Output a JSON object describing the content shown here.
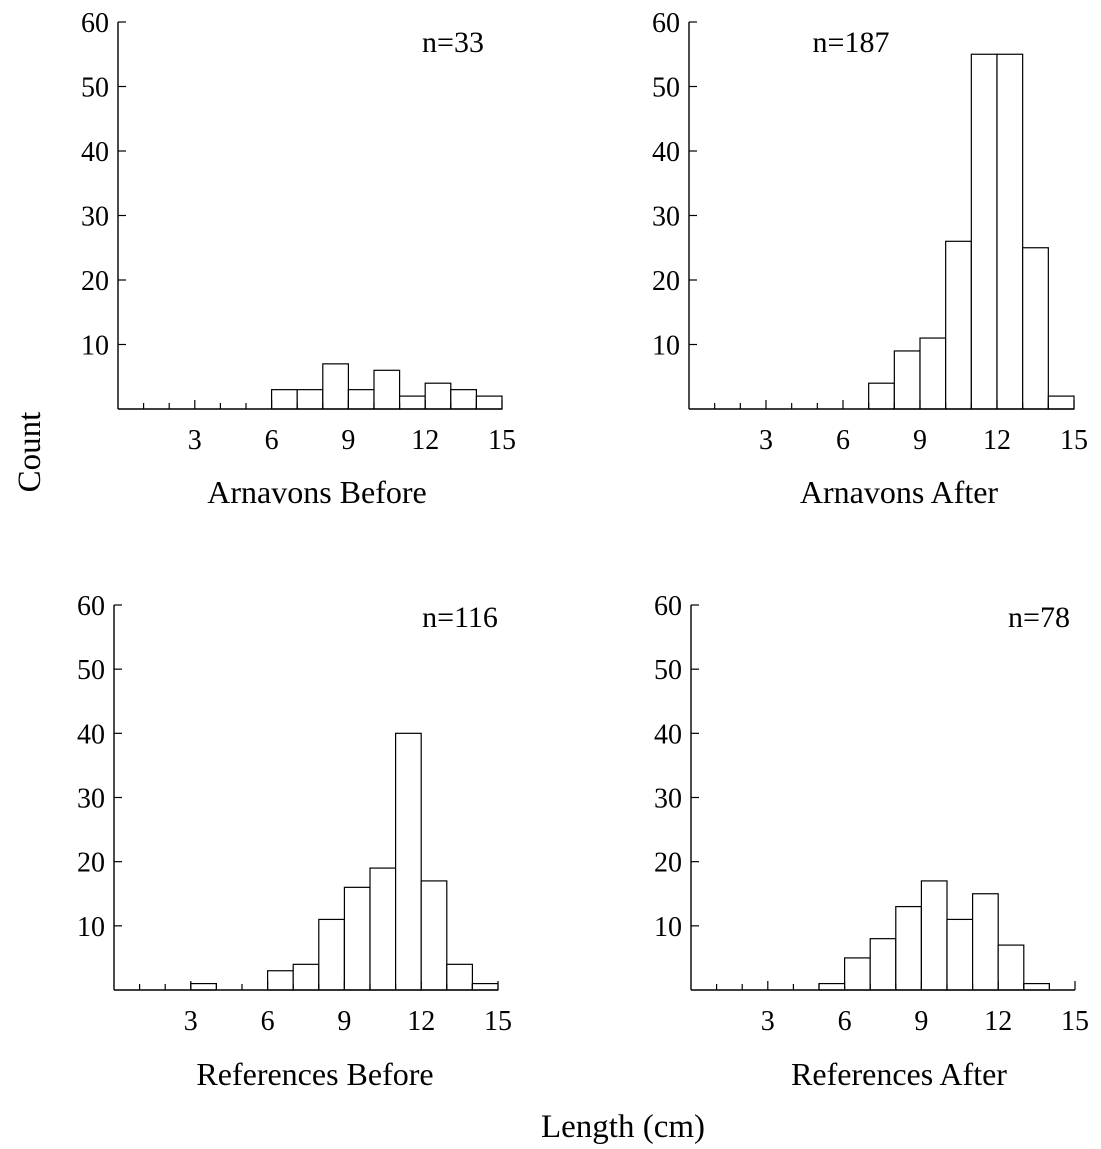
{
  "figure": {
    "ylabel": "Count",
    "xlabel": "Length (cm)"
  },
  "chart_data": [
    {
      "type": "bar",
      "title": "Arnavons Before",
      "annotation": "n=33",
      "xlim": [
        0,
        15
      ],
      "ylim": [
        0,
        60
      ],
      "xticks": [
        3,
        6,
        9,
        12,
        15
      ],
      "yticks": [
        10,
        20,
        30,
        40,
        50,
        60
      ],
      "bin_width": 1,
      "bins": [
        {
          "x0": 6,
          "x1": 7,
          "count": 3
        },
        {
          "x0": 7,
          "x1": 8,
          "count": 3
        },
        {
          "x0": 8,
          "x1": 9,
          "count": 7
        },
        {
          "x0": 9,
          "x1": 10,
          "count": 3
        },
        {
          "x0": 10,
          "x1": 11,
          "count": 6
        },
        {
          "x0": 11,
          "x1": 12,
          "count": 2
        },
        {
          "x0": 12,
          "x1": 13,
          "count": 4
        },
        {
          "x0": 13,
          "x1": 14,
          "count": 3
        },
        {
          "x0": 14,
          "x1": 15,
          "count": 2
        }
      ]
    },
    {
      "type": "bar",
      "title": "Arnavons After",
      "annotation": "n=187",
      "xlim": [
        0,
        15
      ],
      "ylim": [
        0,
        60
      ],
      "xticks": [
        3,
        6,
        9,
        12,
        15
      ],
      "yticks": [
        10,
        20,
        30,
        40,
        50,
        60
      ],
      "bin_width": 1,
      "bins": [
        {
          "x0": 7,
          "x1": 8,
          "count": 4
        },
        {
          "x0": 8,
          "x1": 9,
          "count": 9
        },
        {
          "x0": 9,
          "x1": 10,
          "count": 11
        },
        {
          "x0": 10,
          "x1": 11,
          "count": 26
        },
        {
          "x0": 11,
          "x1": 12,
          "count": 55
        },
        {
          "x0": 12,
          "x1": 13,
          "count": 55
        },
        {
          "x0": 13,
          "x1": 14,
          "count": 25
        },
        {
          "x0": 14,
          "x1": 15,
          "count": 2
        }
      ]
    },
    {
      "type": "bar",
      "title": "References Before",
      "annotation": "n=116",
      "xlim": [
        0,
        15
      ],
      "ylim": [
        0,
        60
      ],
      "xticks": [
        3,
        6,
        9,
        12,
        15
      ],
      "yticks": [
        10,
        20,
        30,
        40,
        50,
        60
      ],
      "bin_width": 1,
      "bins": [
        {
          "x0": 3,
          "x1": 4,
          "count": 1
        },
        {
          "x0": 6,
          "x1": 7,
          "count": 3
        },
        {
          "x0": 7,
          "x1": 8,
          "count": 4
        },
        {
          "x0": 8,
          "x1": 9,
          "count": 11
        },
        {
          "x0": 9,
          "x1": 10,
          "count": 16
        },
        {
          "x0": 10,
          "x1": 11,
          "count": 19
        },
        {
          "x0": 11,
          "x1": 12,
          "count": 40
        },
        {
          "x0": 12,
          "x1": 13,
          "count": 17
        },
        {
          "x0": 13,
          "x1": 14,
          "count": 4
        },
        {
          "x0": 14,
          "x1": 15,
          "count": 1
        }
      ]
    },
    {
      "type": "bar",
      "title": "References After",
      "annotation": "n=78",
      "xlim": [
        0,
        15
      ],
      "ylim": [
        0,
        60
      ],
      "xticks": [
        3,
        6,
        9,
        12,
        15
      ],
      "yticks": [
        10,
        20,
        30,
        40,
        50,
        60
      ],
      "bin_width": 1,
      "bins": [
        {
          "x0": 5,
          "x1": 6,
          "count": 1
        },
        {
          "x0": 6,
          "x1": 7,
          "count": 5
        },
        {
          "x0": 7,
          "x1": 8,
          "count": 8
        },
        {
          "x0": 8,
          "x1": 9,
          "count": 13
        },
        {
          "x0": 9,
          "x1": 10,
          "count": 17
        },
        {
          "x0": 10,
          "x1": 11,
          "count": 11
        },
        {
          "x0": 11,
          "x1": 12,
          "count": 15
        },
        {
          "x0": 12,
          "x1": 13,
          "count": 7
        },
        {
          "x0": 13,
          "x1": 14,
          "count": 1
        }
      ]
    }
  ]
}
